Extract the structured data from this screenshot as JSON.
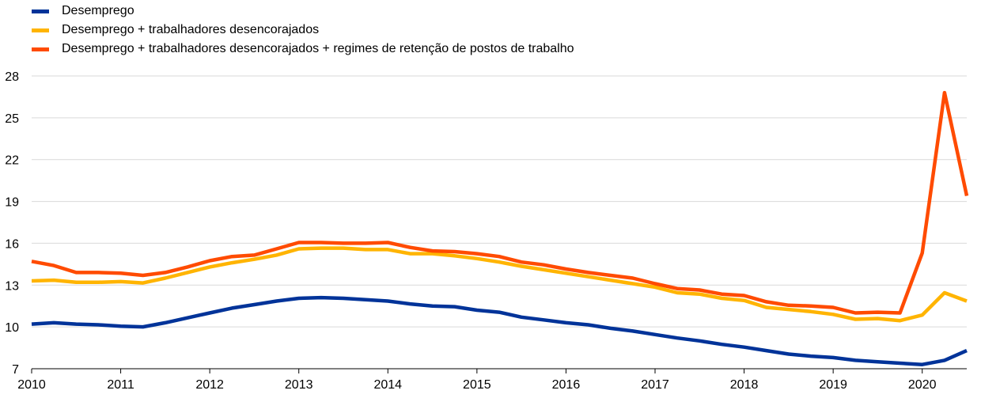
{
  "chart_data": {
    "type": "line",
    "title": "",
    "xlabel": "",
    "ylabel": "",
    "x_ticks": [
      "2010",
      "2011",
      "2012",
      "2013",
      "2014",
      "2015",
      "2016",
      "2017",
      "2018",
      "2019",
      "2020"
    ],
    "xlim": [
      2010,
      2020.5
    ],
    "ylim": [
      7,
      28
    ],
    "y_ticks": [
      7,
      10,
      13,
      16,
      19,
      22,
      25,
      28
    ],
    "grid": "horizontal",
    "legend_position": "top-left",
    "x": [
      2010.0,
      2010.25,
      2010.5,
      2010.75,
      2011.0,
      2011.25,
      2011.5,
      2011.75,
      2012.0,
      2012.25,
      2012.5,
      2012.75,
      2013.0,
      2013.25,
      2013.5,
      2013.75,
      2014.0,
      2014.25,
      2014.5,
      2014.75,
      2015.0,
      2015.25,
      2015.5,
      2015.75,
      2016.0,
      2016.25,
      2016.5,
      2016.75,
      2017.0,
      2017.25,
      2017.5,
      2017.75,
      2018.0,
      2018.25,
      2018.5,
      2018.75,
      2019.0,
      2019.25,
      2019.5,
      2019.75,
      2020.0,
      2020.25,
      2020.5
    ],
    "series": [
      {
        "name": "Desemprego",
        "color": "#003399",
        "values": [
          10.2,
          10.3,
          10.2,
          10.15,
          10.05,
          10.0,
          10.3,
          10.65,
          11.0,
          11.35,
          11.6,
          11.85,
          12.05,
          12.1,
          12.05,
          11.95,
          11.85,
          11.65,
          11.5,
          11.45,
          11.2,
          11.05,
          10.7,
          10.5,
          10.3,
          10.15,
          9.9,
          9.7,
          9.45,
          9.2,
          9.0,
          8.75,
          8.55,
          8.3,
          8.05,
          7.9,
          7.8,
          7.6,
          7.5,
          7.4,
          7.3,
          7.6,
          8.3
        ]
      },
      {
        "name": "Desemprego + trabalhadores desencorajados",
        "color": "#FFB400",
        "values": [
          13.3,
          13.35,
          13.2,
          13.2,
          13.25,
          13.15,
          13.5,
          13.9,
          14.3,
          14.6,
          14.85,
          15.15,
          15.6,
          15.65,
          15.65,
          15.55,
          15.55,
          15.25,
          15.25,
          15.1,
          14.9,
          14.65,
          14.35,
          14.1,
          13.85,
          13.6,
          13.35,
          13.1,
          12.85,
          12.45,
          12.35,
          12.05,
          11.9,
          11.4,
          11.25,
          11.1,
          10.9,
          10.55,
          10.6,
          10.45,
          10.85,
          12.45,
          11.85
        ]
      },
      {
        "name": "Desemprego + trabalhadores desencorajados + regimes de retenção de postos de trabalho",
        "color": "#FF4B00",
        "values": [
          14.7,
          14.4,
          13.9,
          13.9,
          13.85,
          13.7,
          13.9,
          14.3,
          14.75,
          15.05,
          15.15,
          15.6,
          16.05,
          16.05,
          16.0,
          16.0,
          16.05,
          15.7,
          15.45,
          15.4,
          15.25,
          15.05,
          14.65,
          14.45,
          14.15,
          13.9,
          13.7,
          13.5,
          13.1,
          12.75,
          12.65,
          12.35,
          12.25,
          11.8,
          11.55,
          11.5,
          11.4,
          11.0,
          11.05,
          11.0,
          15.3,
          26.8,
          19.4
        ]
      }
    ]
  }
}
